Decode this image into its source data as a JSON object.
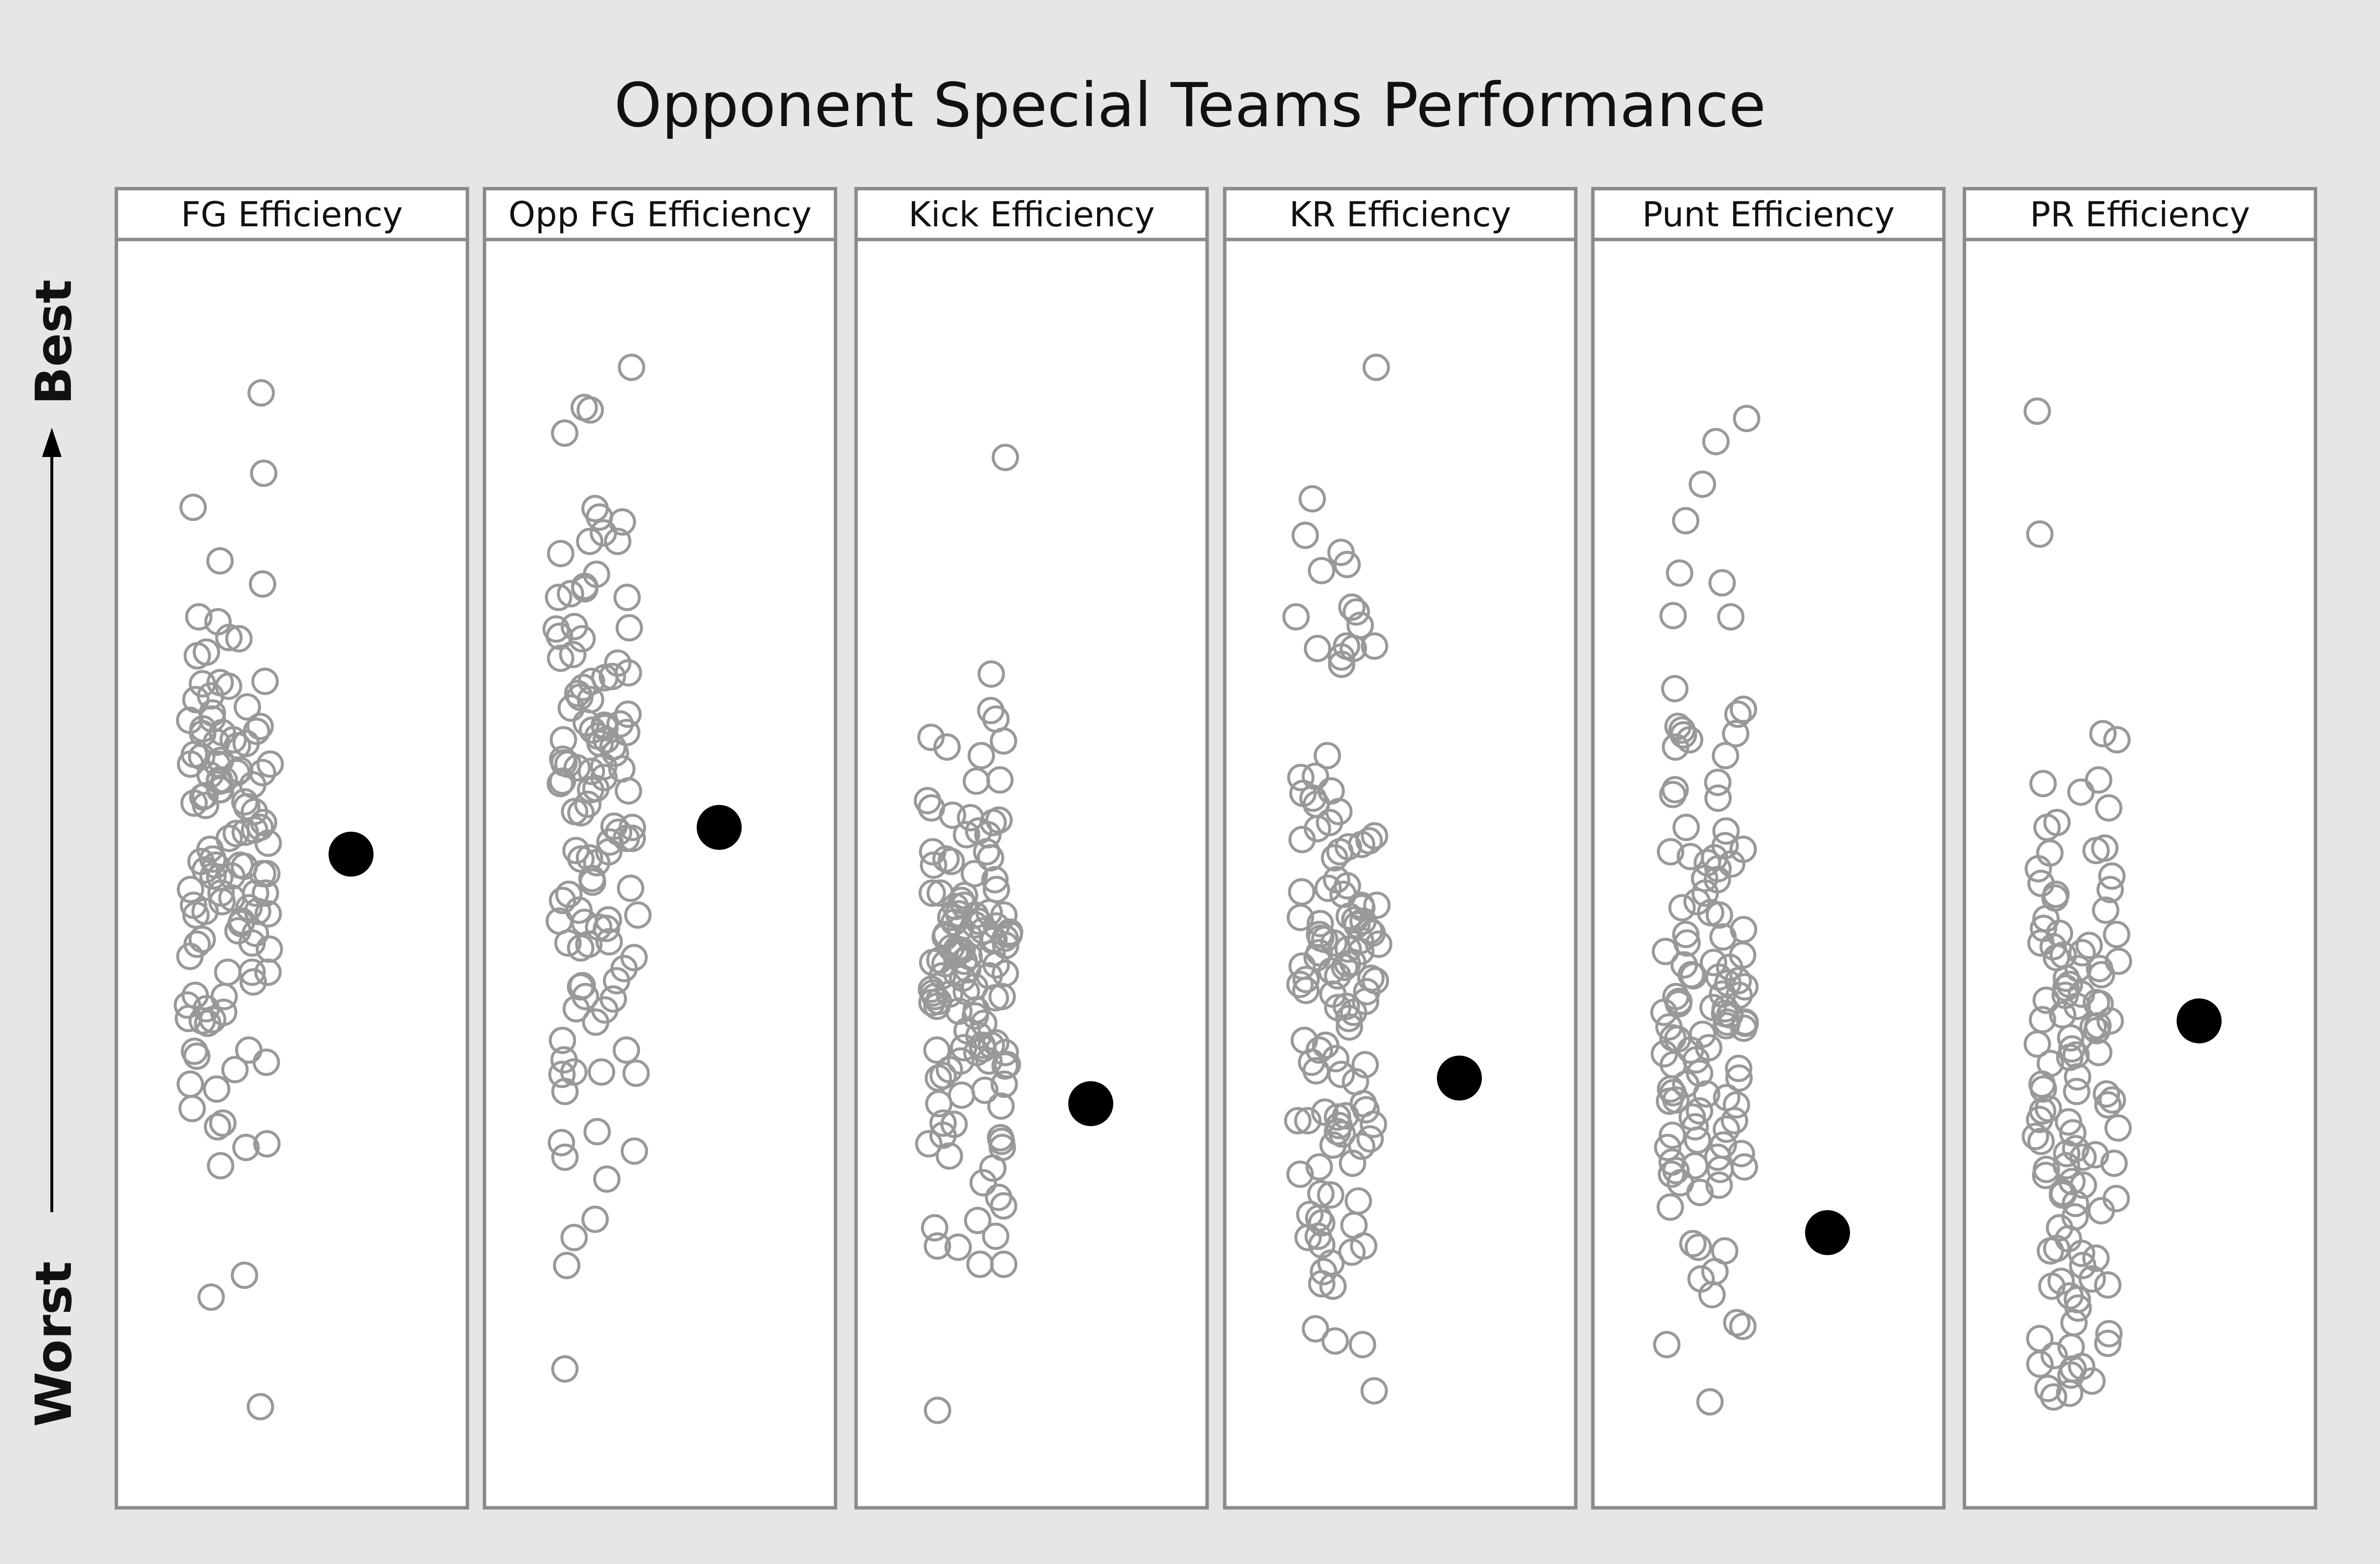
{
  "chart_data": {
    "type": "scatter",
    "title": "Opponent Special Teams Performance",
    "ylabel_top": "Best",
    "ylabel_bottom": "Worst",
    "scale": "Worst (0) to Best (100)",
    "ylim": [
      0,
      100
    ],
    "colors": {
      "league": "#999999",
      "team": "#000000",
      "background": "#e6e6e6",
      "frame": "#8a8a8a"
    },
    "panels": [
      {
        "name": "FG Efficiency",
        "team_value": 51.5,
        "league_values": [
          89.4,
          82.8,
          80.0,
          75.6,
          73.7,
          71.0,
          70.6,
          69.3,
          69.2,
          68.1,
          67.8,
          65.7,
          65.6,
          65.5,
          65.3,
          64.5,
          64.2,
          63.6,
          63.1,
          62.6,
          62.5,
          62.0,
          61.8,
          61.6,
          61.5,
          61.4,
          60.9,
          60.7,
          60.6,
          60.4,
          59.7,
          59.5,
          59.2,
          58.9,
          58.9,
          58.9,
          58.4,
          58.2,
          58.2,
          58.0,
          57.6,
          57.6,
          57.5,
          57.2,
          56.8,
          56.8,
          56.3,
          56.2,
          55.8,
          55.7,
          55.5,
          55.4,
          55.0,
          54.1,
          53.7,
          53.5,
          53.3,
          53.2,
          52.8,
          52.4,
          51.9,
          51.1,
          50.9,
          50.6,
          50.6,
          50.5,
          50.2,
          49.9,
          49.9,
          49.7,
          49.7,
          49.6,
          48.6,
          48.3,
          48.3,
          48.3,
          47.9,
          47.6,
          47.3,
          47.1,
          46.8,
          46.8,
          46.6,
          46.5,
          46.0,
          45.8,
          45.2,
          45.0,
          44.5,
          44.2,
          44.1,
          43.7,
          43.1,
          41.8,
          41.8,
          41.8,
          41.0,
          39.9,
          39.8,
          39.1,
          38.8,
          38.5,
          38.0,
          37.9,
          37.8,
          37.6,
          35.4,
          35.3,
          34.9,
          34.4,
          33.8,
          32.6,
          32.2,
          30.6,
          29.4,
          29.1,
          27.7,
          27.4,
          25.9,
          16.9,
          15.1,
          6.1
        ]
      },
      {
        "name": "Opp FG Efficiency",
        "team_value": 53.7,
        "league_values": [
          91.5,
          88.2,
          88.0,
          86.1,
          79.9,
          79.2,
          78.8,
          77.9,
          77.2,
          77.2,
          76.2,
          74.5,
          73.5,
          73.3,
          72.9,
          72.6,
          72.6,
          70.2,
          70.1,
          70.0,
          69.4,
          69.2,
          67.9,
          67.6,
          67.2,
          66.4,
          66.1,
          66.0,
          65.7,
          65.2,
          64.7,
          64.4,
          64.2,
          63.5,
          63.0,
          62.3,
          62.2,
          62.1,
          61.9,
          61.7,
          61.5,
          61.2,
          60.9,
          60.9,
          60.6,
          60.3,
          59.8,
          59.3,
          59.0,
          58.9,
          58.7,
          58.6,
          58.5,
          58.3,
          57.8,
          57.5,
          57.3,
          56.9,
          56.8,
          56.7,
          55.6,
          55.0,
          54.9,
          53.8,
          53.7,
          53.3,
          52.8,
          52.8,
          52.5,
          51.8,
          51.7,
          51.2,
          51.1,
          50.8,
          49.5,
          49.2,
          48.7,
          48.2,
          47.7,
          46.9,
          46.5,
          46.1,
          46.0,
          45.9,
          45.5,
          45.4,
          44.3,
          44.2,
          44.1,
          43.8,
          43.0,
          42.1,
          41.1,
          40.7,
          40.6,
          39.8,
          39.6,
          38.8,
          38.7,
          37.7,
          36.2,
          35.4,
          34.6,
          33.6,
          33.6,
          33.5,
          33.4,
          32.0,
          28.7,
          27.8,
          27.1,
          26.6,
          24.8,
          21.5,
          20.0,
          17.7,
          9.2
        ]
      },
      {
        "name": "Kick Efficiency",
        "team_value": 31.0,
        "league_values": [
          84.1,
          66.3,
          63.3,
          62.6,
          61.1,
          60.8,
          60.3,
          59.6,
          57.6,
          57.5,
          55.9,
          55.3,
          54.7,
          54.5,
          54.3,
          54.1,
          53.4,
          53.1,
          53.1,
          51.7,
          51.7,
          51.2,
          51.1,
          50.9,
          50.6,
          49.9,
          49.4,
          48.6,
          48.3,
          48.3,
          48.1,
          47.7,
          47.3,
          47.2,
          46.7,
          46.6,
          46.5,
          46.5,
          46.3,
          46.0,
          45.9,
          45.7,
          45.6,
          45.4,
          45.2,
          45.1,
          44.9,
          44.9,
          44.7,
          44.7,
          44.6,
          44.5,
          44.4,
          44.0,
          43.8,
          43.7,
          43.6,
          43.5,
          43.4,
          43.3,
          43.1,
          42.8,
          42.7,
          42.6,
          42.5,
          42.4,
          42.0,
          41.7,
          41.7,
          41.5,
          41.5,
          41.3,
          40.6,
          40.4,
          40.2,
          40.1,
          40.0,
          39.8,
          39.8,
          39.7,
          39.4,
          39.3,
          39.0,
          38.7,
          38.6,
          38.2,
          37.6,
          37.0,
          36.6,
          36.0,
          35.8,
          35.8,
          35.6,
          35.5,
          35.4,
          35.2,
          35.2,
          34.5,
          34.5,
          34.2,
          34.1,
          33.8,
          33.3,
          33.1,
          32.6,
          32.1,
          31.7,
          31.0,
          30.8,
          29.4,
          29.3,
          28.4,
          28.2,
          27.9,
          27.7,
          27.4,
          26.7,
          25.7,
          24.5,
          23.3,
          22.6,
          21.4,
          20.8,
          20.1,
          19.3,
          19.2,
          17.8,
          17.8,
          5.8
        ]
      },
      {
        "name": "KR Efficiency",
        "team_value": 33.1,
        "league_values": [
          91.5,
          80.7,
          77.7,
          76.3,
          75.3,
          74.8,
          71.8,
          71.4,
          71.0,
          70.3,
          68.6,
          68.6,
          68.4,
          68.4,
          67.7,
          67.1,
          59.6,
          57.9,
          57.8,
          56.7,
          56.5,
          56.1,
          55.6,
          55.0,
          54.1,
          53.6,
          53.0,
          52.7,
          52.6,
          52.3,
          52.1,
          51.7,
          51.2,
          49.4,
          48.9,
          48.7,
          48.4,
          48.2,
          47.3,
          47.3,
          47.1,
          46.4,
          46.3,
          46.1,
          46.0,
          45.8,
          45.7,
          45.2,
          45.0,
          44.9,
          44.6,
          44.5,
          44.4,
          44.2,
          44.1,
          43.7,
          43.5,
          43.4,
          43.0,
          42.6,
          42.5,
          42.3,
          42.2,
          41.9,
          41.5,
          41.3,
          41.2,
          41.1,
          40.8,
          40.3,
          40.2,
          40.0,
          39.4,
          39.0,
          38.9,
          38.5,
          38.0,
          37.3,
          36.2,
          35.8,
          35.4,
          34.7,
          34.4,
          34.2,
          33.7,
          33.4,
          32.8,
          31.0,
          30.5,
          30.3,
          30.0,
          29.9,
          29.6,
          29.6,
          29.3,
          29.2,
          28.7,
          28.5,
          28.1,
          27.6,
          27.5,
          26.1,
          25.8,
          25.2,
          23.6,
          23.5,
          23.0,
          21.9,
          21.6,
          21.2,
          21.0,
          20.1,
          20.0,
          19.4,
          19.3,
          18.8,
          17.9,
          17.2,
          16.2,
          16.0,
          12.5,
          11.5,
          11.2,
          7.4
        ]
      },
      {
        "name": "Punt Efficiency",
        "team_value": 20.4,
        "league_values": [
          87.3,
          85.4,
          81.9,
          78.9,
          74.6,
          73.8,
          71.1,
          71.0,
          65.1,
          63.4,
          63.0,
          62.0,
          61.7,
          61.4,
          61.3,
          60.9,
          60.3,
          59.6,
          57.4,
          56.8,
          56.4,
          56.1,
          53.7,
          53.4,
          52.2,
          51.9,
          51.7,
          51.3,
          51.2,
          50.8,
          50.7,
          50.3,
          49.5,
          49.4,
          48.3,
          47.6,
          47.1,
          46.7,
          46.5,
          45.3,
          44.9,
          44.7,
          44.2,
          43.5,
          43.2,
          42.6,
          42.4,
          42.2,
          41.6,
          41.5,
          41.4,
          41.1,
          40.9,
          40.6,
          40.0,
          39.9,
          39.8,
          39.4,
          39.2,
          38.9,
          38.8,
          38.5,
          38.4,
          38.3,
          38.3,
          37.7,
          37.7,
          37.6,
          37.4,
          37.3,
          37.2,
          36.7,
          36.4,
          36.3,
          35.6,
          35.4,
          35.1,
          34.6,
          34.2,
          33.9,
          33.5,
          33.1,
          32.6,
          32.2,
          31.9,
          31.8,
          31.5,
          31.3,
          31.2,
          30.9,
          30.4,
          29.9,
          29.6,
          29.1,
          28.9,
          28.4,
          28.0,
          27.6,
          27.4,
          26.9,
          26.6,
          26.2,
          25.9,
          25.8,
          25.6,
          25.5,
          25.2,
          24.5,
          24.3,
          23.7,
          22.5,
          19.5,
          19.2,
          18.9,
          17.2,
          16.6,
          15.3,
          13.0,
          12.7,
          11.2,
          6.5
        ]
      },
      {
        "name": "PR Efficiency",
        "team_value": 37.8,
        "league_values": [
          87.9,
          77.8,
          61.4,
          60.9,
          57.6,
          57.3,
          56.6,
          55.3,
          54.1,
          53.7,
          52.0,
          51.8,
          51.6,
          50.3,
          49.7,
          49.1,
          48.6,
          48.2,
          47.9,
          46.9,
          46.2,
          45.4,
          45.0,
          44.9,
          44.2,
          44.0,
          43.9,
          43.4,
          43.2,
          43.0,
          42.7,
          42.1,
          42.1,
          41.6,
          41.3,
          40.8,
          40.5,
          40.0,
          39.9,
          39.5,
          39.3,
          39.2,
          39.0,
          38.3,
          37.9,
          37.8,
          37.4,
          37.3,
          37.0,
          36.4,
          35.9,
          35.5,
          35.2,
          35.0,
          34.8,
          34.3,
          33.2,
          32.6,
          32.2,
          32.0,
          31.8,
          31.3,
          30.9,
          30.6,
          30.4,
          29.7,
          29.5,
          29.0,
          28.6,
          28.3,
          27.9,
          27.3,
          26.9,
          26.8,
          26.6,
          26.1,
          25.9,
          25.6,
          25.1,
          24.6,
          24.3,
          23.7,
          23.6,
          23.5,
          23.2,
          22.8,
          22.2,
          21.7,
          20.8,
          19.9,
          19.1,
          18.9,
          18.7,
          18.3,
          17.7,
          16.6,
          16.4,
          16.1,
          16.0,
          15.2,
          14.9,
          14.2,
          13.0,
          12.1,
          11.7,
          11.3,
          11.0,
          10.3,
          9.6,
          9.4,
          9.2,
          8.7,
          8.2,
          7.6,
          7.2,
          6.9
        ]
      }
    ]
  }
}
